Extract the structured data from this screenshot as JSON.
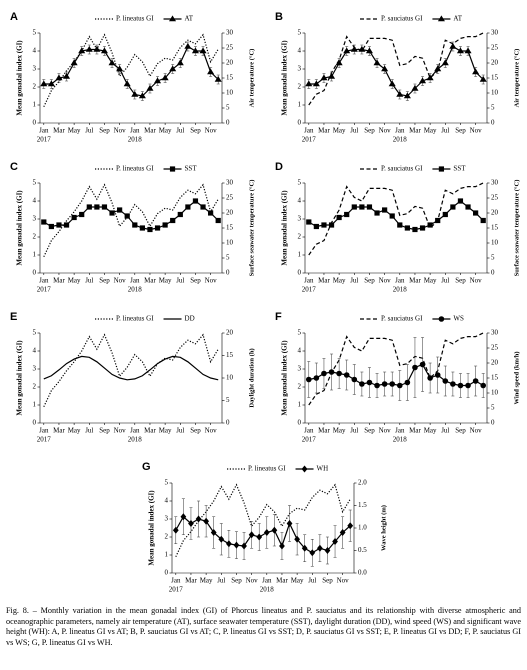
{
  "chart_data": [
    {
      "type": "line",
      "label": "A",
      "ylabel": "Mean gonadal index (GI)",
      "y2label": "Air temperature (°C)",
      "categories": [
        "Jan",
        null,
        "Mar",
        null,
        "May",
        null,
        "Jul",
        null,
        "Sep",
        null,
        "Nov",
        null,
        "Jan",
        null,
        "Mar",
        null,
        "May",
        null,
        "Jul",
        null,
        "Sep",
        null,
        "Nov",
        null
      ],
      "year_labels": [
        "2017",
        null,
        null,
        null,
        null,
        null,
        null,
        null,
        null,
        null,
        null,
        null,
        "2018",
        null,
        null,
        null,
        null,
        null,
        null,
        null,
        null,
        null,
        null,
        null
      ],
      "ylim": [
        0,
        5
      ],
      "yticks": [
        0,
        1,
        2,
        3,
        4,
        5
      ],
      "y2lim": [
        0,
        30
      ],
      "y2ticks": [
        0,
        5,
        10,
        15,
        20,
        25,
        30
      ],
      "series": [
        {
          "name": "P. lineatus GI",
          "color": "#000000",
          "dash": "dotted",
          "marker": null,
          "values": [
            0.9,
            1.8,
            2.3,
            2.9,
            3.4,
            4.0,
            4.8,
            4.1,
            4.9,
            3.9,
            2.6,
            3.1,
            3.8,
            3.4,
            2.6,
            3.3,
            3.6,
            3.5,
            4.2,
            4.6,
            4.4,
            4.9,
            3.4,
            4.1
          ]
        },
        {
          "name": "AT",
          "color": "#000000",
          "dash": null,
          "marker": "triangle",
          "axis": "y2",
          "values": [
            13,
            13,
            15,
            15.5,
            20,
            24,
            24.5,
            24.5,
            24,
            20,
            18,
            13,
            9.5,
            9,
            11.5,
            14,
            15,
            18,
            20,
            25.5,
            24,
            24,
            17,
            14.5
          ],
          "errors": [
            1.5,
            1.5,
            1.5,
            1.5,
            1.5,
            1.5,
            1.5,
            1.5,
            1.5,
            1.5,
            1.5,
            1.5,
            1.5,
            1.5,
            1.5,
            1.5,
            1.5,
            1.5,
            1.5,
            1.5,
            1.5,
            1.5,
            1.5,
            1.5
          ]
        }
      ]
    },
    {
      "type": "line",
      "label": "B",
      "ylabel": "Mean gonadal index (GI)",
      "y2label": "Air temperature (°C)",
      "categories": [
        "Jan",
        null,
        "Mar",
        null,
        "May",
        null,
        "Jul",
        null,
        "Sep",
        null,
        "Nov",
        null,
        "Jan",
        null,
        "Mar",
        null,
        "May",
        null,
        "Jul",
        null,
        "Sep",
        null,
        "Nov",
        null
      ],
      "year_labels": [
        "2017",
        null,
        null,
        null,
        null,
        null,
        null,
        null,
        null,
        null,
        null,
        null,
        "2018",
        null,
        null,
        null,
        null,
        null,
        null,
        null,
        null,
        null,
        null,
        null
      ],
      "ylim": [
        0,
        5
      ],
      "yticks": [
        0,
        1,
        2,
        3,
        4,
        5
      ],
      "y2lim": [
        0,
        30
      ],
      "y2ticks": [
        0,
        5,
        10,
        15,
        20,
        25,
        30
      ],
      "series": [
        {
          "name": "P. sauciatus GI",
          "color": "#000000",
          "dash": "dashed",
          "marker": null,
          "values": [
            1.0,
            1.6,
            1.8,
            2.8,
            3.5,
            4.8,
            4.2,
            4.0,
            4.7,
            4.7,
            4.7,
            4.6,
            3.2,
            3.3,
            3.7,
            3.6,
            2.5,
            2.9,
            4.6,
            4.4,
            4.7,
            4.8,
            4.8,
            5.0
          ]
        },
        {
          "name": "AT",
          "color": "#000000",
          "dash": null,
          "marker": "triangle",
          "axis": "y2",
          "values": [
            13,
            13,
            15,
            15.5,
            20,
            24,
            24.5,
            24.5,
            24,
            20,
            18,
            13,
            9.5,
            9,
            11.5,
            14,
            15,
            18,
            20,
            25.5,
            24,
            24,
            17,
            14.5
          ],
          "errors": [
            1.5,
            1.5,
            1.5,
            1.5,
            1.5,
            1.5,
            1.5,
            1.5,
            1.5,
            1.5,
            1.5,
            1.5,
            1.5,
            1.5,
            1.5,
            1.5,
            1.5,
            1.5,
            1.5,
            1.5,
            1.5,
            1.5,
            1.5,
            1.5
          ]
        }
      ]
    },
    {
      "type": "line",
      "label": "C",
      "ylabel": "Mean gonadal index (GI)",
      "y2label": "Surface seawater temperature (°C)",
      "categories": [
        "Jan",
        null,
        "Mar",
        null,
        "May",
        null,
        "Jul",
        null,
        "Sep",
        null,
        "Nov",
        null,
        "Jan",
        null,
        "Mar",
        null,
        "May",
        null,
        "Jul",
        null,
        "Sep",
        null,
        "Nov",
        null
      ],
      "year_labels": [
        "2017",
        null,
        null,
        null,
        null,
        null,
        null,
        null,
        null,
        null,
        null,
        null,
        "2018",
        null,
        null,
        null,
        null,
        null,
        null,
        null,
        null,
        null,
        null,
        null
      ],
      "ylim": [
        0,
        5
      ],
      "yticks": [
        0,
        1,
        2,
        3,
        4,
        5
      ],
      "y2lim": [
        0,
        30
      ],
      "y2ticks": [
        0,
        5,
        10,
        15,
        20,
        25,
        30
      ],
      "series": [
        {
          "name": "P. lineatus GI",
          "color": "#000000",
          "dash": "dotted",
          "marker": null,
          "values": [
            0.9,
            1.8,
            2.3,
            2.9,
            3.4,
            4.0,
            4.8,
            4.1,
            4.9,
            3.9,
            2.6,
            3.1,
            3.8,
            3.4,
            2.6,
            3.3,
            3.6,
            3.5,
            4.2,
            4.6,
            4.4,
            4.9,
            3.4,
            4.1
          ]
        },
        {
          "name": "SST",
          "color": "#000000",
          "dash": null,
          "marker": "square",
          "axis": "y2",
          "values": [
            17,
            15.5,
            16,
            16,
            18.5,
            19.5,
            22,
            22,
            22,
            20,
            21,
            19,
            16,
            15,
            14.5,
            15,
            16,
            17.5,
            19.5,
            22,
            24,
            22,
            20,
            17.5
          ]
        }
      ]
    },
    {
      "type": "line",
      "label": "D",
      "ylabel": "Mean gonadal index (GI)",
      "y2label": "Surface seawater temperature (°C)",
      "categories": [
        "Jan",
        null,
        "Mar",
        null,
        "May",
        null,
        "Jul",
        null,
        "Sep",
        null,
        "Nov",
        null,
        "Jan",
        null,
        "Mar",
        null,
        "May",
        null,
        "Jul",
        null,
        "Sep",
        null,
        "Nov",
        null
      ],
      "year_labels": [
        "2017",
        null,
        null,
        null,
        null,
        null,
        null,
        null,
        null,
        null,
        null,
        null,
        "2018",
        null,
        null,
        null,
        null,
        null,
        null,
        null,
        null,
        null,
        null,
        null
      ],
      "ylim": [
        0,
        5
      ],
      "yticks": [
        0,
        1,
        2,
        3,
        4,
        5
      ],
      "y2lim": [
        0,
        30
      ],
      "y2ticks": [
        0,
        5,
        10,
        15,
        20,
        25,
        30
      ],
      "series": [
        {
          "name": "P. sauciatus GI",
          "color": "#000000",
          "dash": "dashed",
          "marker": null,
          "values": [
            1.0,
            1.6,
            1.8,
            2.8,
            3.5,
            4.8,
            4.2,
            4.0,
            4.7,
            4.7,
            4.7,
            4.6,
            3.2,
            3.3,
            3.7,
            3.6,
            2.5,
            2.9,
            4.6,
            4.4,
            4.7,
            4.8,
            4.8,
            5.0
          ]
        },
        {
          "name": "SST",
          "color": "#000000",
          "dash": null,
          "marker": "square",
          "axis": "y2",
          "values": [
            17,
            15.5,
            16,
            16,
            18.5,
            19.5,
            22,
            22,
            22,
            20,
            21,
            19,
            16,
            15,
            14.5,
            15,
            16,
            17.5,
            19.5,
            22,
            24,
            22,
            20,
            17.5
          ]
        }
      ]
    },
    {
      "type": "line",
      "label": "E",
      "ylabel": "Mean gonadal index (GI)",
      "y2label": "Daylight duration (h)",
      "categories": [
        "Jan",
        null,
        "Mar",
        null,
        "May",
        null,
        "Jul",
        null,
        "Sep",
        null,
        "Nov",
        null,
        "Jan",
        null,
        "Mar",
        null,
        "May",
        null,
        "Jul",
        null,
        "Sep",
        null,
        "Nov",
        null
      ],
      "year_labels": [
        "2017",
        null,
        null,
        null,
        null,
        null,
        null,
        null,
        null,
        null,
        null,
        null,
        "2018",
        null,
        null,
        null,
        null,
        null,
        null,
        null,
        null,
        null,
        null,
        null
      ],
      "ylim": [
        0,
        5
      ],
      "yticks": [
        0,
        1,
        2,
        3,
        4,
        5
      ],
      "y2lim": [
        0,
        20
      ],
      "y2ticks": [
        0,
        5,
        10,
        15,
        20
      ],
      "series": [
        {
          "name": "P. lineatus GI",
          "color": "#000000",
          "dash": "dotted",
          "marker": null,
          "values": [
            0.9,
            1.8,
            2.3,
            2.9,
            3.4,
            4.0,
            4.8,
            4.1,
            4.9,
            3.9,
            2.6,
            3.1,
            3.8,
            3.4,
            2.6,
            3.3,
            3.6,
            3.5,
            4.2,
            4.6,
            4.4,
            4.9,
            3.4,
            4.1
          ]
        },
        {
          "name": "DD",
          "color": "#000000",
          "dash": null,
          "marker": null,
          "axis": "y2",
          "values": [
            9.8,
            10.5,
            11.8,
            13.2,
            14.2,
            14.8,
            14.6,
            13.6,
            12.2,
            10.8,
            10,
            9.6,
            9.8,
            10.5,
            11.8,
            13.2,
            14.2,
            14.8,
            14.6,
            13.6,
            12.2,
            10.8,
            10,
            9.6
          ]
        }
      ]
    },
    {
      "type": "line",
      "label": "F",
      "ylabel": "Mean gonadal index (GI)",
      "y2label": "Wind speed (km/h)",
      "categories": [
        "Jan",
        null,
        "Mar",
        null,
        "May",
        null,
        "Jul",
        null,
        "Sep",
        null,
        "Nov",
        null,
        "Jan",
        null,
        "Mar",
        null,
        "May",
        null,
        "Jul",
        null,
        "Sep",
        null,
        "Nov",
        null
      ],
      "year_labels": [
        "2017",
        null,
        null,
        null,
        null,
        null,
        null,
        null,
        null,
        null,
        null,
        null,
        "2018",
        null,
        null,
        null,
        null,
        null,
        null,
        null,
        null,
        null,
        null,
        null
      ],
      "ylim": [
        0,
        5
      ],
      "yticks": [
        0,
        1,
        2,
        3,
        4,
        5
      ],
      "y2lim": [
        0,
        30
      ],
      "y2ticks": [
        0,
        5,
        10,
        15,
        20,
        25,
        30
      ],
      "series": [
        {
          "name": "P. sauciatus GI",
          "color": "#000000",
          "dash": "dashed",
          "marker": null,
          "values": [
            1.0,
            1.6,
            1.8,
            2.8,
            3.5,
            4.8,
            4.2,
            4.0,
            4.7,
            4.7,
            4.7,
            4.6,
            3.2,
            3.3,
            3.7,
            3.6,
            2.5,
            2.9,
            4.6,
            4.4,
            4.7,
            4.8,
            4.8,
            5.0
          ]
        },
        {
          "name": "WS",
          "color": "#000000",
          "dash": null,
          "marker": "circle",
          "axis": "y2",
          "values": [
            14.5,
            15,
            16.5,
            17,
            16.5,
            16,
            14.5,
            13,
            13.5,
            12.5,
            13,
            13,
            12.5,
            13.5,
            18.5,
            19.5,
            15,
            16,
            14,
            13,
            12.5,
            12.5,
            14,
            12.5
          ],
          "errors": [
            6,
            5,
            5,
            6,
            5,
            5,
            5,
            4,
            5,
            4,
            4,
            4,
            5,
            6,
            10,
            9,
            5,
            6,
            5,
            4,
            4,
            4,
            5,
            4
          ]
        }
      ]
    },
    {
      "type": "line",
      "label": "G",
      "ylabel": "Mean gonadal index (GI)",
      "y2label": "Wave height (m)",
      "categories": [
        "Jan",
        null,
        "Mar",
        null,
        "May",
        null,
        "Jul",
        null,
        "Sep",
        null,
        "Nov",
        null,
        "Jan",
        null,
        "Mar",
        null,
        "May",
        null,
        "Jul",
        null,
        "Sep",
        null,
        "Nov",
        null
      ],
      "year_labels": [
        "2017",
        null,
        null,
        null,
        null,
        null,
        null,
        null,
        null,
        null,
        null,
        null,
        "2018",
        null,
        null,
        null,
        null,
        null,
        null,
        null,
        null,
        null,
        null,
        null
      ],
      "ylim": [
        0,
        5
      ],
      "yticks": [
        0,
        1,
        2,
        3,
        4,
        5
      ],
      "y2lim": [
        0,
        2
      ],
      "y2ticks": [
        {
          "value": 0,
          "label": "0.0"
        },
        0.5,
        {
          "value": 1,
          "label": "1.0"
        },
        1.5,
        {
          "value": 2,
          "label": "2.0"
        }
      ],
      "series": [
        {
          "name": "P. lineatus GI",
          "color": "#000000",
          "dash": "dotted",
          "marker": null,
          "values": [
            0.9,
            1.8,
            2.3,
            2.9,
            3.4,
            4.0,
            4.8,
            4.1,
            4.9,
            3.9,
            2.6,
            3.1,
            3.8,
            3.4,
            2.6,
            3.3,
            3.6,
            3.5,
            4.2,
            4.6,
            4.4,
            4.9,
            3.4,
            4.1
          ]
        },
        {
          "name": "WH",
          "color": "#000000",
          "dash": null,
          "marker": "diamond",
          "axis": "y2",
          "values": [
            0.95,
            1.25,
            1.1,
            1.2,
            1.15,
            0.9,
            0.75,
            0.65,
            0.62,
            0.6,
            0.85,
            0.8,
            0.9,
            0.95,
            0.6,
            1.1,
            0.75,
            0.55,
            0.45,
            0.55,
            0.5,
            0.7,
            0.9,
            1.05
          ],
          "errors": [
            0.3,
            0.4,
            0.35,
            0.4,
            0.35,
            0.35,
            0.35,
            0.3,
            0.3,
            0.3,
            0.3,
            0.3,
            0.35,
            0.35,
            0.3,
            0.4,
            0.35,
            0.3,
            0.3,
            0.3,
            0.3,
            0.35,
            0.35,
            0.35
          ]
        }
      ]
    }
  ],
  "caption": "Fig. 8. – Monthly variation in the mean gonadal index (GI) of Phorcus lineatus and P. sauciatus and its relationship with diverse atmospheric and oceanographic parameters, namely air temperature (AT), surface seawater temperature (SST), daylight duration (DD), wind speed (WS) and significant wave height (WH): A, P. lineatus GI vs AT; B, P. sauciatus GI vs AT; C, P. lineatus GI vs SST; D, P. sauciatus GI vs SST; E, P. lineatus GI vs DD; F, P. sauciatus GI vs WS; G, P. lineatus GI vs WH."
}
